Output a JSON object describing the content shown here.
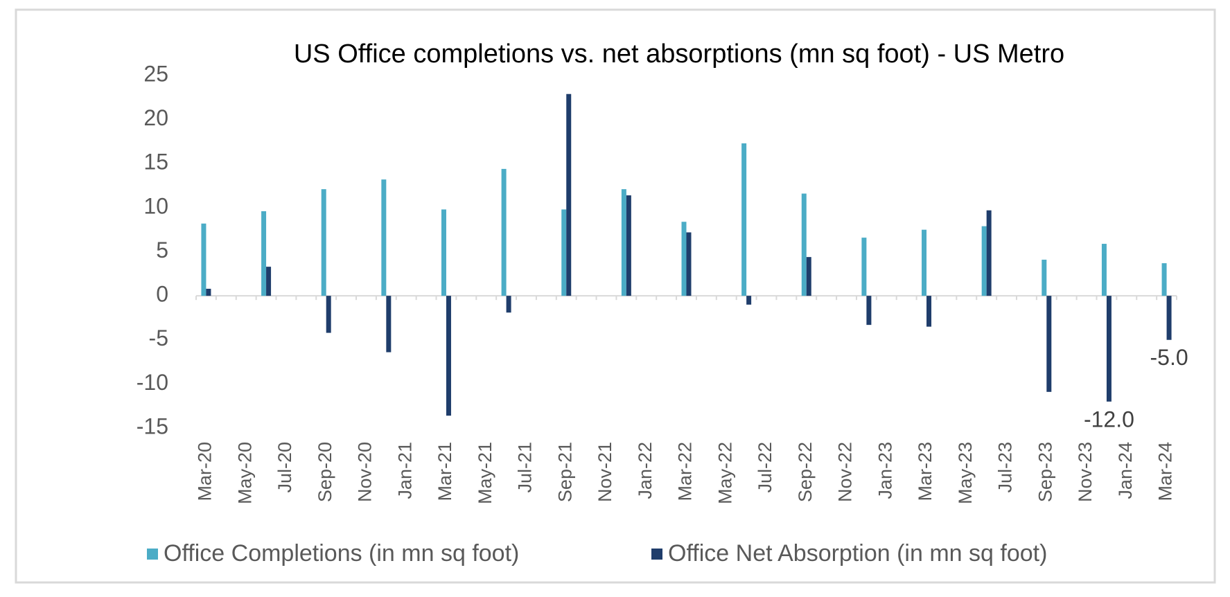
{
  "chart_data": {
    "type": "bar",
    "title": "US Office completions vs. net absorptions (mn sq foot) - US Metro",
    "categories": [
      "Mar-20",
      null,
      "May-20",
      null,
      "Jul-20",
      null,
      "Sep-20",
      null,
      "Nov-20",
      null,
      "Jan-21",
      null,
      "Mar-21",
      null,
      "May-21",
      null,
      "Jul-21",
      null,
      "Sep-21",
      null,
      "Nov-21",
      null,
      "Jan-22",
      null,
      "Mar-22",
      null,
      "May-22",
      null,
      "Jul-22",
      null,
      "Sep-22",
      null,
      "Nov-22",
      null,
      "Jan-23",
      null,
      "Mar-23",
      null,
      "May-23",
      null,
      "Jul-23",
      null,
      "Sep-23",
      null,
      "Nov-23",
      null,
      "Jan-24",
      null,
      "Mar-24"
    ],
    "series": [
      {
        "name": "Office Completions (in mn sq foot)",
        "color": "#4bacc6",
        "values": [
          8.2,
          null,
          null,
          9.6,
          null,
          null,
          12.1,
          null,
          null,
          13.2,
          null,
          null,
          9.8,
          null,
          null,
          14.4,
          null,
          null,
          9.8,
          null,
          null,
          12.1,
          null,
          null,
          8.4,
          null,
          null,
          17.3,
          null,
          null,
          11.6,
          null,
          null,
          6.6,
          null,
          null,
          7.5,
          null,
          null,
          7.9,
          null,
          null,
          4.1,
          null,
          null,
          5.9,
          null,
          null,
          3.7
        ]
      },
      {
        "name": "Office Net Absorption (in mn sq foot)",
        "color": "#1f3d6b",
        "values": [
          0.8,
          null,
          null,
          3.3,
          null,
          null,
          -4.2,
          null,
          null,
          -6.4,
          null,
          null,
          -13.6,
          null,
          null,
          -1.9,
          null,
          null,
          22.9,
          null,
          null,
          11.4,
          null,
          null,
          7.2,
          null,
          null,
          -1.0,
          null,
          null,
          4.4,
          null,
          null,
          -3.3,
          null,
          null,
          -3.5,
          null,
          null,
          9.7,
          null,
          null,
          -10.9,
          null,
          null,
          -12.0,
          null,
          null,
          -5.0
        ],
        "value_labels": [
          null,
          null,
          null,
          null,
          null,
          null,
          null,
          null,
          null,
          null,
          null,
          null,
          null,
          null,
          null,
          null,
          null,
          null,
          null,
          null,
          null,
          null,
          null,
          null,
          null,
          null,
          null,
          null,
          null,
          null,
          null,
          null,
          null,
          null,
          null,
          null,
          null,
          null,
          null,
          null,
          null,
          null,
          null,
          null,
          null,
          "-12.0",
          null,
          null,
          "-5.0"
        ]
      }
    ],
    "ylim": [
      -15,
      25
    ],
    "yticks": [
      -15,
      -10,
      -5,
      0,
      5,
      10,
      15,
      20,
      25
    ],
    "grid": false,
    "legend": "bottom"
  }
}
